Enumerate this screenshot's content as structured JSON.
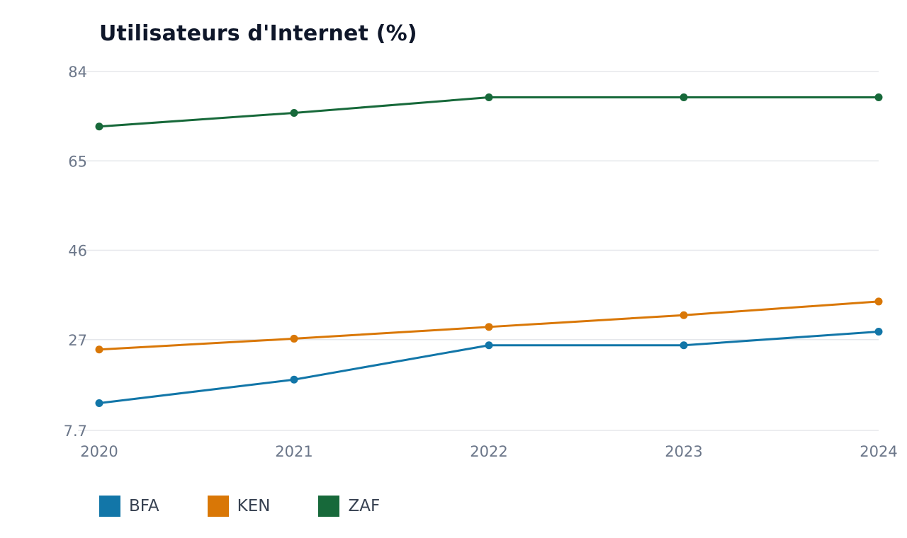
{
  "chart_data": {
    "type": "line",
    "title": "Utilisateurs d'Internet (%)",
    "x": [
      "2020",
      "2021",
      "2022",
      "2023",
      "2024"
    ],
    "ylim": [
      7.7,
      84
    ],
    "y_ticks": [
      "7.7",
      "27",
      "46",
      "65",
      "84"
    ],
    "grid": true,
    "legend_position": "bottom-left",
    "series": [
      {
        "name": "BFA",
        "color": "#1276a8",
        "values": [
          13.5,
          18.5,
          25.8,
          25.8,
          28.7
        ]
      },
      {
        "name": "KEN",
        "color": "#d97706",
        "values": [
          24.9,
          27.2,
          29.7,
          32.2,
          35.1
        ]
      },
      {
        "name": "ZAF",
        "color": "#17693a",
        "values": [
          72.3,
          75.2,
          78.5,
          78.5,
          78.5
        ]
      }
    ]
  }
}
